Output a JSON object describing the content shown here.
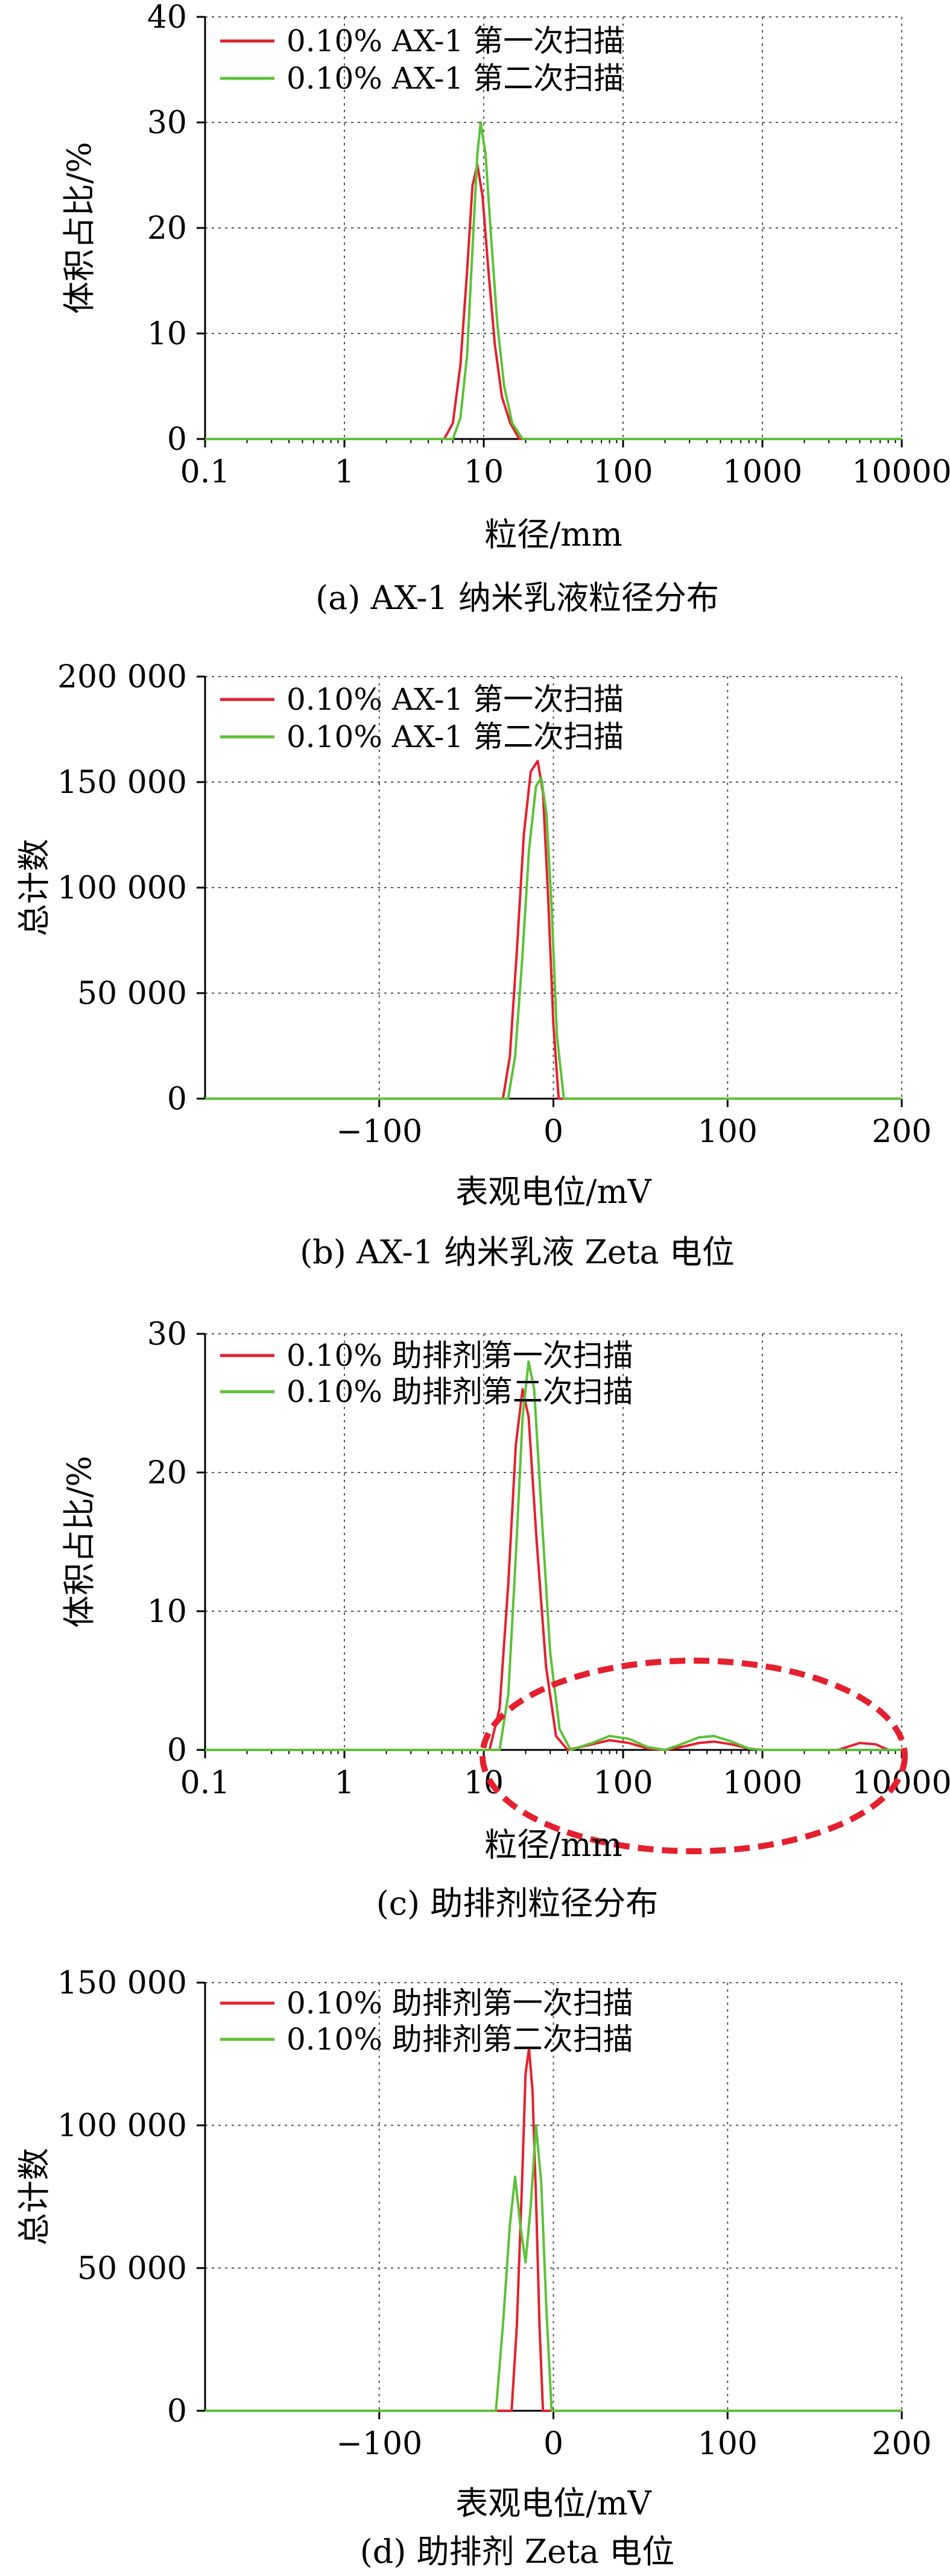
{
  "chart_data": [
    {
      "type": "line",
      "panel_caption": "(a) AX-1 纳米乳液粒径分布",
      "xlabel": "粒径/mm",
      "ylabel": "体积占比/%",
      "xscale": "log",
      "xlim": [
        0.1,
        10000
      ],
      "ylim": [
        0,
        40
      ],
      "xticks": [
        "0.1",
        "1",
        "10",
        "100",
        "1000",
        "10000"
      ],
      "yticks": [
        "0",
        "10",
        "20",
        "30",
        "40"
      ],
      "grid": true,
      "legend_position": "top-left",
      "series": [
        {
          "name": "0.10% AX-1 第一次扫描",
          "color": "#e5202e",
          "x": [
            0.1,
            5.2,
            6.0,
            6.8,
            7.6,
            8.3,
            9.0,
            9.8,
            10.8,
            12.0,
            13.5,
            15.5,
            18.0,
            10000
          ],
          "y": [
            0,
            0,
            1.5,
            7,
            16,
            24,
            26,
            23,
            16,
            9,
            4,
            1.5,
            0,
            0
          ]
        },
        {
          "name": "0.10% AX-1 第二次扫描",
          "color": "#5cc236",
          "x": [
            0.1,
            6.0,
            6.8,
            7.6,
            8.3,
            9.0,
            9.5,
            10.3,
            11.3,
            12.5,
            14.0,
            16.0,
            19.0,
            10000
          ],
          "y": [
            0,
            0,
            2,
            8,
            18,
            27,
            30,
            27,
            19,
            11,
            5,
            1.5,
            0,
            0
          ]
        }
      ]
    },
    {
      "type": "line",
      "panel_caption": "(b) AX-1 纳米乳液 Zeta 电位",
      "xlabel": "表观电位/mV",
      "ylabel": "总计数",
      "xlim": [
        -200,
        200
      ],
      "ylim": [
        0,
        200000
      ],
      "xticks": [
        "−100",
        "0",
        "100",
        "200"
      ],
      "yticks": [
        "0",
        "50 000",
        "100 000",
        "150 000",
        "200 000"
      ],
      "grid": true,
      "legend_position": "top-left",
      "series": [
        {
          "name": "0.10% AX-1 第一次扫描",
          "color": "#e5202e",
          "x": [
            -200,
            -29,
            -25,
            -21,
            -17,
            -13,
            -9,
            -6,
            -3,
            0,
            3,
            200
          ],
          "y": [
            0,
            0,
            20000,
            70000,
            125000,
            155000,
            160000,
            145000,
            95000,
            35000,
            0,
            0
          ]
        },
        {
          "name": "0.10% AX-1 第二次扫描",
          "color": "#5cc236",
          "x": [
            -200,
            -26,
            -22,
            -18,
            -14,
            -10,
            -7,
            -4,
            -1,
            2,
            6,
            200
          ],
          "y": [
            0,
            0,
            20000,
            65000,
            118000,
            148000,
            152000,
            135000,
            90000,
            30000,
            0,
            0
          ]
        }
      ]
    },
    {
      "type": "line",
      "panel_caption": "(c) 助排剂粒径分布",
      "xlabel": "粒径/mm",
      "ylabel": "体积占比/%",
      "xscale": "log",
      "xlim": [
        0.1,
        10000
      ],
      "ylim": [
        0,
        30
      ],
      "xticks": [
        "0.1",
        "1",
        "10",
        "100",
        "1000",
        "10000"
      ],
      "yticks": [
        "0",
        "10",
        "20",
        "30"
      ],
      "grid": true,
      "legend_position": "top-left",
      "annotation": "red dashed ellipse",
      "series": [
        {
          "name": "0.10% 助排剂第一次扫描",
          "color": "#e5202e",
          "x": [
            0.1,
            11,
            13,
            15,
            17,
            19,
            21,
            24,
            28,
            33,
            40,
            60,
            80,
            110,
            150,
            200,
            260,
            350,
            450,
            600,
            800,
            1000,
            3500,
            5000,
            6500,
            8000,
            10000
          ],
          "y": [
            0,
            0,
            3,
            12,
            22,
            26,
            24,
            15,
            6,
            1,
            0,
            0.4,
            0.7,
            0.5,
            0.1,
            0,
            0.2,
            0.5,
            0.6,
            0.4,
            0.1,
            0,
            0,
            0.5,
            0.4,
            0,
            0
          ]
        },
        {
          "name": "0.10% 助排剂第二次扫描",
          "color": "#5cc236",
          "x": [
            0.1,
            13,
            15,
            17,
            19,
            21,
            23,
            26,
            30,
            35,
            42,
            60,
            80,
            110,
            150,
            200,
            260,
            350,
            450,
            600,
            800,
            1000,
            10000
          ],
          "y": [
            0,
            0,
            4,
            14,
            24,
            28,
            26,
            17,
            7,
            1.5,
            0,
            0.5,
            1.0,
            0.8,
            0.2,
            0,
            0.4,
            0.9,
            1.0,
            0.6,
            0.1,
            0,
            0
          ]
        }
      ]
    },
    {
      "type": "line",
      "panel_caption": "(d) 助排剂 Zeta 电位",
      "xlabel": "表观电位/mV",
      "ylabel": "总计数",
      "xlim": [
        -200,
        200
      ],
      "ylim": [
        0,
        150000
      ],
      "xticks": [
        "−100",
        "0",
        "100",
        "200"
      ],
      "yticks": [
        "0",
        "50 000",
        "100 000",
        "150 000"
      ],
      "grid": true,
      "legend_position": "top-left",
      "series": [
        {
          "name": "0.10% 助排剂第一次扫描",
          "color": "#e5202e",
          "x": [
            -200,
            -24,
            -21,
            -18,
            -16,
            -14,
            -12,
            -10,
            -8,
            -6,
            200
          ],
          "y": [
            0,
            0,
            30000,
            80000,
            118000,
            127000,
            112000,
            75000,
            30000,
            0,
            0
          ]
        },
        {
          "name": "0.10% 助排剂第二次扫描",
          "color": "#5cc236",
          "x": [
            -200,
            -33,
            -29,
            -25,
            -22,
            -19,
            -16,
            -13,
            -10,
            -7,
            -4,
            -1,
            200
          ],
          "y": [
            0,
            0,
            30000,
            65000,
            82000,
            65000,
            52000,
            72000,
            100000,
            80000,
            35000,
            0,
            0
          ]
        }
      ]
    }
  ]
}
